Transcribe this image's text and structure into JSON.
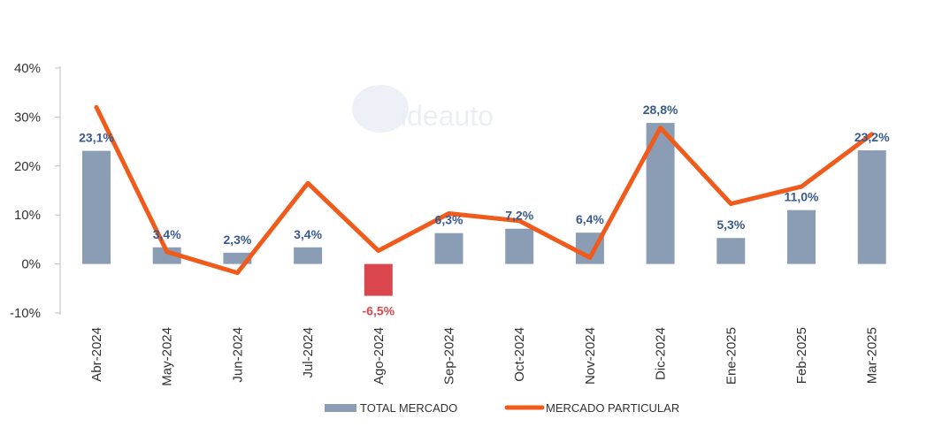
{
  "chart_data": {
    "type": "bar",
    "categories": [
      "Abr-2024",
      "May-2024",
      "Jun-2024",
      "Jul-2024",
      "Ago-2024",
      "Sep-2024",
      "Oct-2024",
      "Nov-2024",
      "Dic-2024",
      "Ene-2025",
      "Feb-2025",
      "Mar-2025"
    ],
    "series": [
      {
        "name": "TOTAL MERCADO",
        "type": "bar",
        "values": [
          23.1,
          3.4,
          2.3,
          3.4,
          -6.5,
          6.3,
          7.2,
          6.4,
          28.8,
          5.3,
          11.0,
          23.2
        ],
        "labels": [
          "23,1%",
          "3,4%",
          "2,3%",
          "3,4%",
          "-6,5%",
          "6,3%",
          "7,2%",
          "6,4%",
          "28,8%",
          "5,3%",
          "11,0%",
          "23,2%"
        ]
      },
      {
        "name": "MERCADO PARTICULAR",
        "type": "line",
        "values": [
          32.0,
          2.5,
          -1.8,
          16.5,
          2.7,
          10.3,
          8.8,
          1.3,
          27.8,
          12.3,
          15.8,
          26.5
        ]
      }
    ],
    "yticks": [
      "40%",
      "30%",
      "20%",
      "10%",
      "0%",
      "-10%"
    ],
    "ytick_values": [
      40,
      30,
      20,
      10,
      0,
      -10
    ],
    "ylim": [
      -10,
      40
    ],
    "grid": false,
    "legend_position": "bottom",
    "watermark": "ideauto",
    "colors": {
      "bar": "#8b9db5",
      "bar_negative": "#d9464e",
      "line": "#f05a1a",
      "label_positive": "#3a5a8c",
      "label_negative": "#d9464e",
      "axis": "#333333",
      "axis_line": "#bfbfbf"
    }
  }
}
